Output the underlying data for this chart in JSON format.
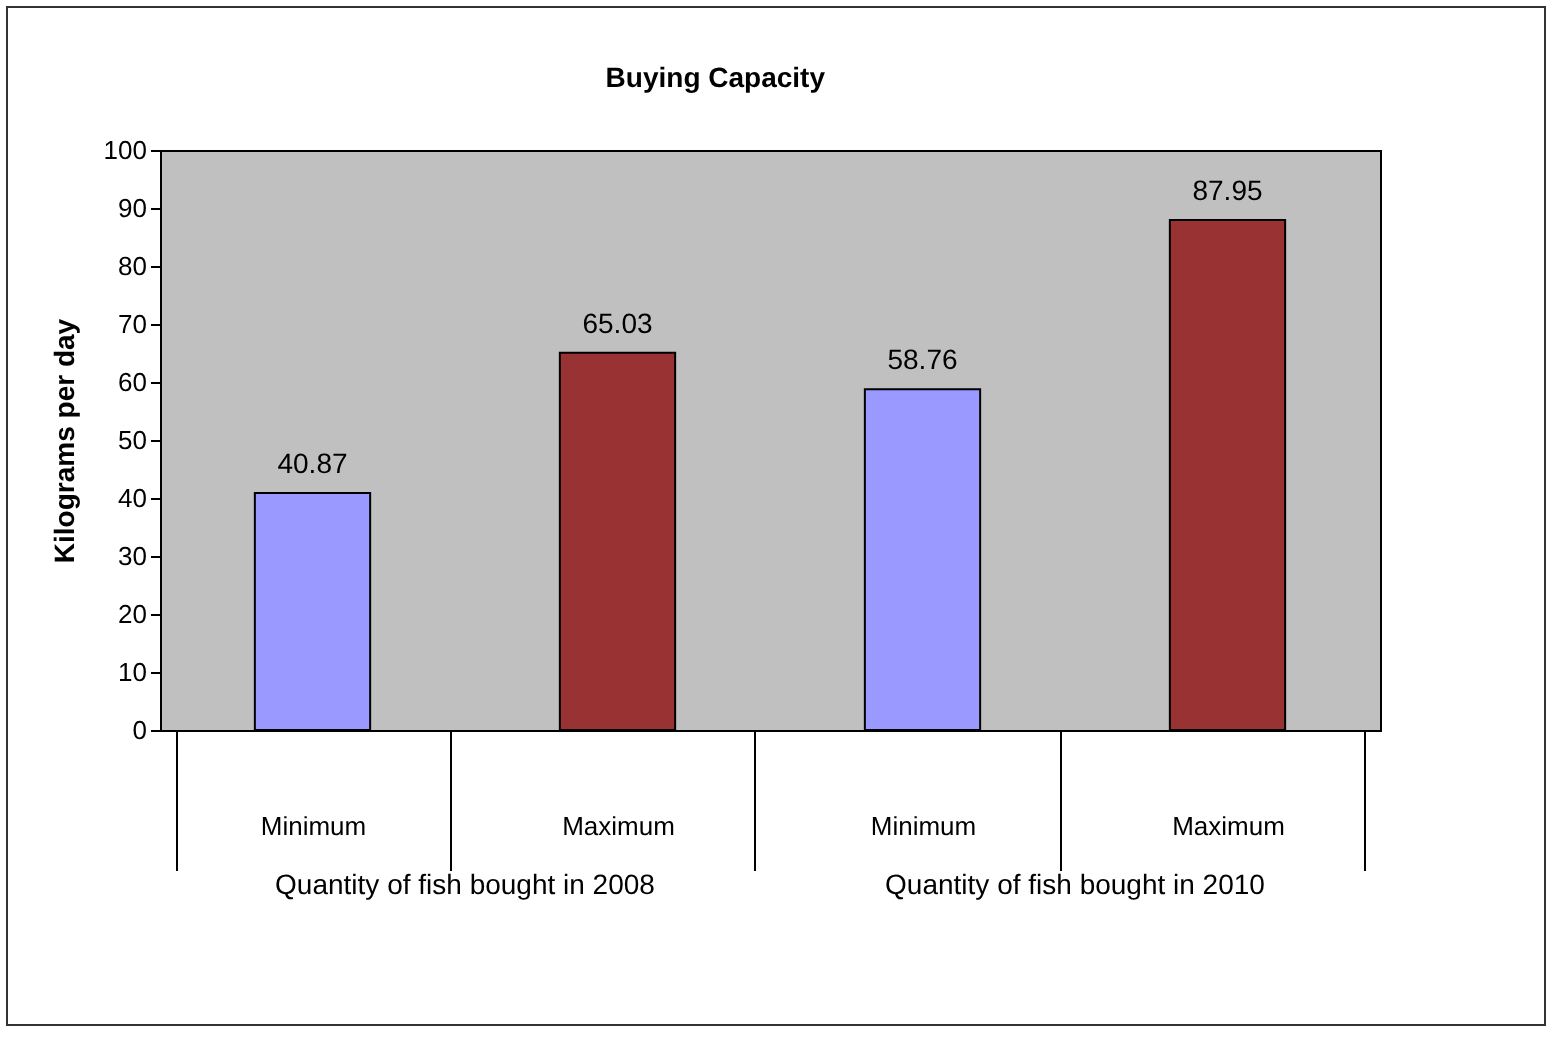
{
  "chart_data": {
    "type": "bar",
    "title": "Buying Capacity",
    "ylabel": "Kilograms per day",
    "categories": [
      "Minimum",
      "Maximum",
      "Minimum",
      "Maximum"
    ],
    "values": [
      40.87,
      65.03,
      58.76,
      87.95
    ],
    "colors": [
      "#9999ff",
      "#993333",
      "#9999ff",
      "#993333"
    ],
    "ylim": [
      0,
      100
    ],
    "yticks": [
      0,
      10,
      20,
      30,
      40,
      50,
      60,
      70,
      80,
      90,
      100
    ],
    "data_labels": true,
    "grid": false,
    "legend": false,
    "annotations": [
      "Quantity of fish bought in 2008",
      "Quantity of fish bought in 2010"
    ]
  }
}
